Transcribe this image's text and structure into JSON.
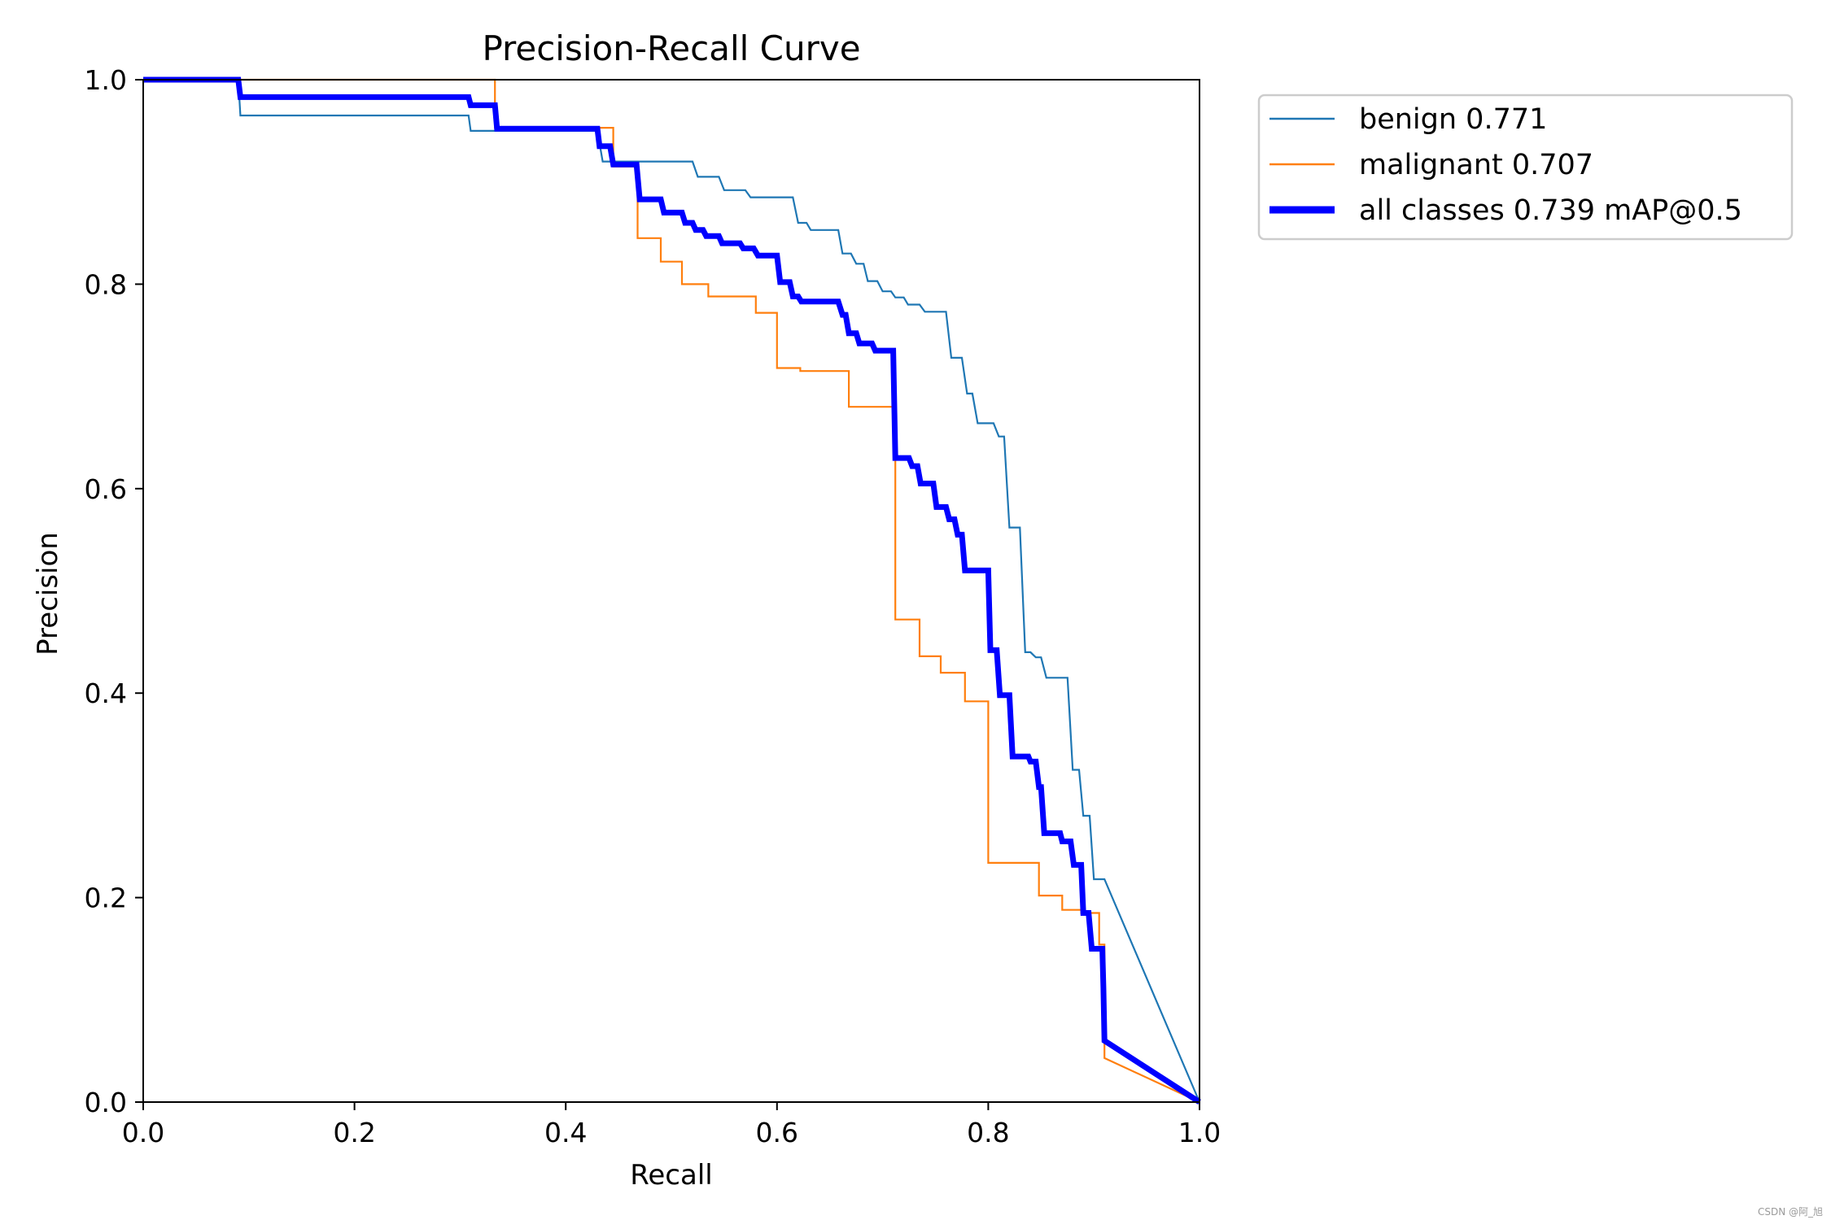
{
  "chart_data": {
    "type": "line",
    "title": "Precision-Recall Curve",
    "xlabel": "Recall",
    "ylabel": "Precision",
    "xlim": [
      0.0,
      1.0
    ],
    "ylim": [
      0.0,
      1.0
    ],
    "xticks": [
      "0.0",
      "0.2",
      "0.4",
      "0.6",
      "0.8",
      "1.0"
    ],
    "yticks": [
      "0.0",
      "0.2",
      "0.4",
      "0.6",
      "0.8",
      "1.0"
    ],
    "grid": false,
    "legend_position": "outside-top-right",
    "series": [
      {
        "name": "benign",
        "label": "benign 0.771",
        "color": "#1f77b4",
        "style": "thin",
        "x": [
          0,
          0.09,
          0.092,
          0.308,
          0.31,
          0.333,
          0.335,
          0.43,
          0.435,
          0.44,
          0.445,
          0.52,
          0.525,
          0.545,
          0.55,
          0.57,
          0.575,
          0.615,
          0.62,
          0.628,
          0.632,
          0.658,
          0.662,
          0.67,
          0.675,
          0.682,
          0.686,
          0.695,
          0.7,
          0.708,
          0.712,
          0.72,
          0.724,
          0.735,
          0.74,
          0.76,
          0.765,
          0.775,
          0.78,
          0.785,
          0.79,
          0.805,
          0.81,
          0.815,
          0.82,
          0.83,
          0.835,
          0.84,
          0.845,
          0.85,
          0.855,
          0.875,
          0.88,
          0.886,
          0.89,
          0.896,
          0.9,
          0.91,
          1.0
        ],
        "y": [
          1.0,
          1.0,
          0.965,
          0.965,
          0.95,
          0.95,
          0.95,
          0.95,
          0.92,
          0.92,
          0.92,
          0.92,
          0.905,
          0.905,
          0.892,
          0.892,
          0.885,
          0.885,
          0.86,
          0.86,
          0.853,
          0.853,
          0.83,
          0.83,
          0.82,
          0.82,
          0.803,
          0.803,
          0.793,
          0.793,
          0.787,
          0.787,
          0.78,
          0.78,
          0.773,
          0.773,
          0.728,
          0.728,
          0.693,
          0.693,
          0.664,
          0.664,
          0.651,
          0.651,
          0.562,
          0.562,
          0.44,
          0.44,
          0.435,
          0.435,
          0.415,
          0.415,
          0.325,
          0.325,
          0.28,
          0.28,
          0.218,
          0.218,
          0.0
        ]
      },
      {
        "name": "malignant",
        "label": "malignant 0.707",
        "color": "#ff7f0e",
        "style": "thin",
        "x": [
          0,
          0.333,
          0.333,
          0.445,
          0.445,
          0.468,
          0.468,
          0.49,
          0.49,
          0.51,
          0.51,
          0.535,
          0.535,
          0.58,
          0.58,
          0.6,
          0.6,
          0.622,
          0.622,
          0.668,
          0.668,
          0.712,
          0.712,
          0.735,
          0.735,
          0.755,
          0.755,
          0.778,
          0.778,
          0.8,
          0.8,
          0.848,
          0.848,
          0.87,
          0.87,
          0.888,
          0.888,
          0.905,
          0.905,
          0.91,
          0.91,
          1.0
        ],
        "y": [
          1.0,
          1.0,
          0.953,
          0.953,
          0.915,
          0.915,
          0.845,
          0.845,
          0.822,
          0.822,
          0.8,
          0.8,
          0.788,
          0.788,
          0.772,
          0.772,
          0.718,
          0.718,
          0.715,
          0.715,
          0.68,
          0.68,
          0.472,
          0.472,
          0.436,
          0.436,
          0.42,
          0.42,
          0.392,
          0.392,
          0.234,
          0.234,
          0.202,
          0.202,
          0.188,
          0.188,
          0.185,
          0.185,
          0.154,
          0.154,
          0.043,
          0.0
        ]
      },
      {
        "name": "all classes",
        "label": "all classes 0.739 mAP@0.5",
        "color": "#0000ff",
        "style": "thick",
        "x": [
          0,
          0.09,
          0.092,
          0.308,
          0.31,
          0.333,
          0.335,
          0.43,
          0.432,
          0.442,
          0.445,
          0.467,
          0.47,
          0.49,
          0.493,
          0.51,
          0.513,
          0.52,
          0.523,
          0.53,
          0.533,
          0.545,
          0.548,
          0.565,
          0.568,
          0.578,
          0.582,
          0.6,
          0.603,
          0.612,
          0.615,
          0.62,
          0.623,
          0.658,
          0.662,
          0.665,
          0.668,
          0.675,
          0.678,
          0.69,
          0.693,
          0.71,
          0.712,
          0.725,
          0.728,
          0.733,
          0.736,
          0.748,
          0.751,
          0.76,
          0.763,
          0.768,
          0.771,
          0.775,
          0.778,
          0.8,
          0.802,
          0.808,
          0.811,
          0.82,
          0.823,
          0.838,
          0.84,
          0.845,
          0.848,
          0.85,
          0.853,
          0.868,
          0.87,
          0.878,
          0.881,
          0.888,
          0.89,
          0.895,
          0.898,
          0.908,
          0.909,
          0.91,
          1.0
        ],
        "y": [
          1.0,
          1.0,
          0.983,
          0.983,
          0.975,
          0.975,
          0.952,
          0.952,
          0.935,
          0.935,
          0.917,
          0.917,
          0.883,
          0.883,
          0.87,
          0.87,
          0.86,
          0.86,
          0.853,
          0.853,
          0.847,
          0.847,
          0.84,
          0.84,
          0.835,
          0.835,
          0.828,
          0.828,
          0.802,
          0.802,
          0.788,
          0.788,
          0.783,
          0.783,
          0.77,
          0.77,
          0.752,
          0.752,
          0.742,
          0.742,
          0.735,
          0.735,
          0.63,
          0.63,
          0.622,
          0.622,
          0.605,
          0.605,
          0.582,
          0.582,
          0.57,
          0.57,
          0.555,
          0.555,
          0.52,
          0.52,
          0.442,
          0.442,
          0.398,
          0.398,
          0.338,
          0.338,
          0.333,
          0.333,
          0.308,
          0.308,
          0.263,
          0.263,
          0.255,
          0.255,
          0.232,
          0.232,
          0.185,
          0.185,
          0.15,
          0.15,
          0.112,
          0.06,
          0.0
        ]
      }
    ]
  },
  "watermark": "CSDN @阿_旭"
}
